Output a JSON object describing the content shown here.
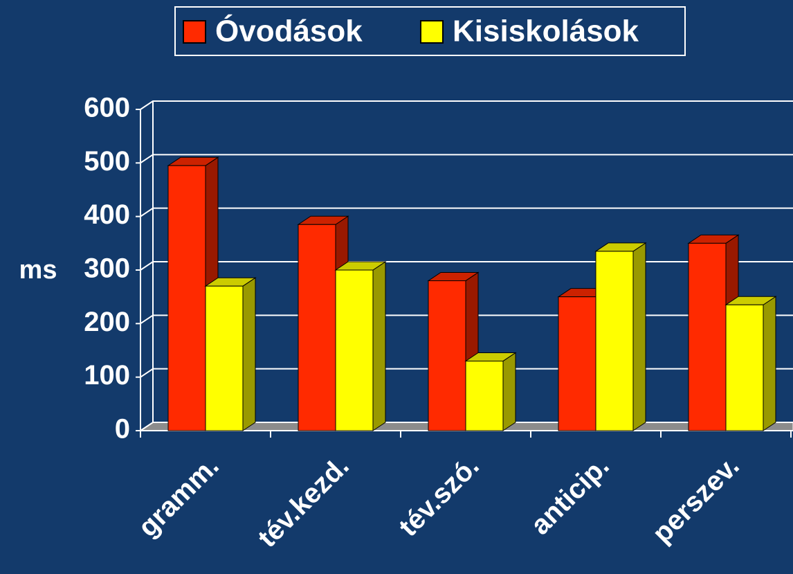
{
  "chart_data": {
    "type": "bar3d",
    "categories": [
      "gramm.",
      "tév.kezd.",
      "tév.szó.",
      "anticip.",
      "perszev."
    ],
    "series": [
      {
        "name": "Óvodások",
        "color": "#ff2a00",
        "values": [
          495,
          385,
          280,
          250,
          350
        ]
      },
      {
        "name": "Kisiskolások",
        "color": "#ffff00",
        "values": [
          270,
          300,
          130,
          335,
          235
        ]
      }
    ],
    "ylabel": "ms",
    "ylim": [
      0,
      600
    ],
    "yticks": [
      0,
      100,
      200,
      300,
      400,
      500,
      600
    ],
    "grid": true,
    "legend": "top"
  }
}
